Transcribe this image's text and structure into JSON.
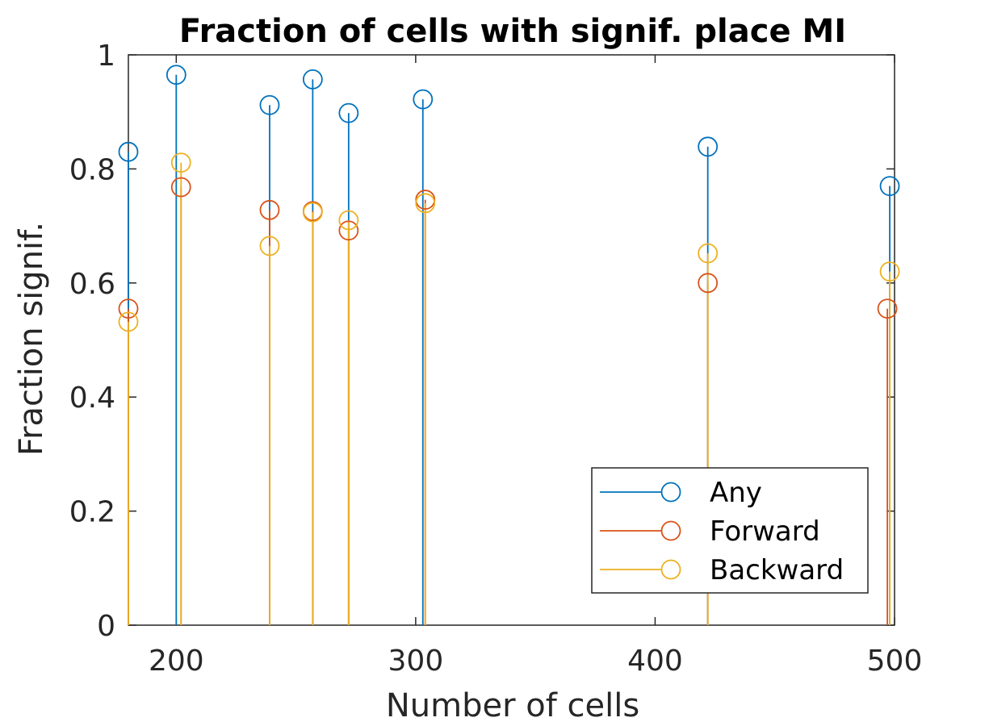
{
  "chart_data": {
    "type": "stem",
    "title": "Fraction of cells with signif. place MI",
    "xlabel": "Number of cells",
    "ylabel": "Fraction signif.",
    "xlim": [
      180,
      500
    ],
    "ylim": [
      0,
      1
    ],
    "xticks": [
      200,
      300,
      400,
      500
    ],
    "yticks": [
      0,
      0.2,
      0.4,
      0.6,
      0.8,
      1
    ],
    "ytick_labels": [
      "0",
      "0.2",
      "0.4",
      "0.6",
      "0.8",
      "1"
    ],
    "grid": false,
    "legend_position": "bottom-right",
    "marker": "open-circle",
    "x": [
      180,
      200,
      239,
      257,
      272,
      303,
      422,
      498
    ],
    "series": [
      {
        "name": "Any",
        "color": "#0072BD",
        "x": [
          180,
          200,
          239,
          257,
          272,
          303,
          422,
          498
        ],
        "values": [
          0.83,
          0.965,
          0.912,
          0.957,
          0.898,
          0.922,
          0.839,
          0.77
        ]
      },
      {
        "name": "Forward",
        "color": "#D95319",
        "x": [
          180,
          202,
          239,
          257,
          272,
          304,
          422,
          497
        ],
        "values": [
          0.555,
          0.768,
          0.728,
          0.726,
          0.692,
          0.746,
          0.6,
          0.555
        ]
      },
      {
        "name": "Backward",
        "color": "#EDB120",
        "x": [
          180,
          202,
          239,
          257,
          272,
          304,
          422,
          498
        ],
        "values": [
          0.532,
          0.811,
          0.665,
          0.724,
          0.71,
          0.74,
          0.652,
          0.62
        ]
      }
    ]
  }
}
